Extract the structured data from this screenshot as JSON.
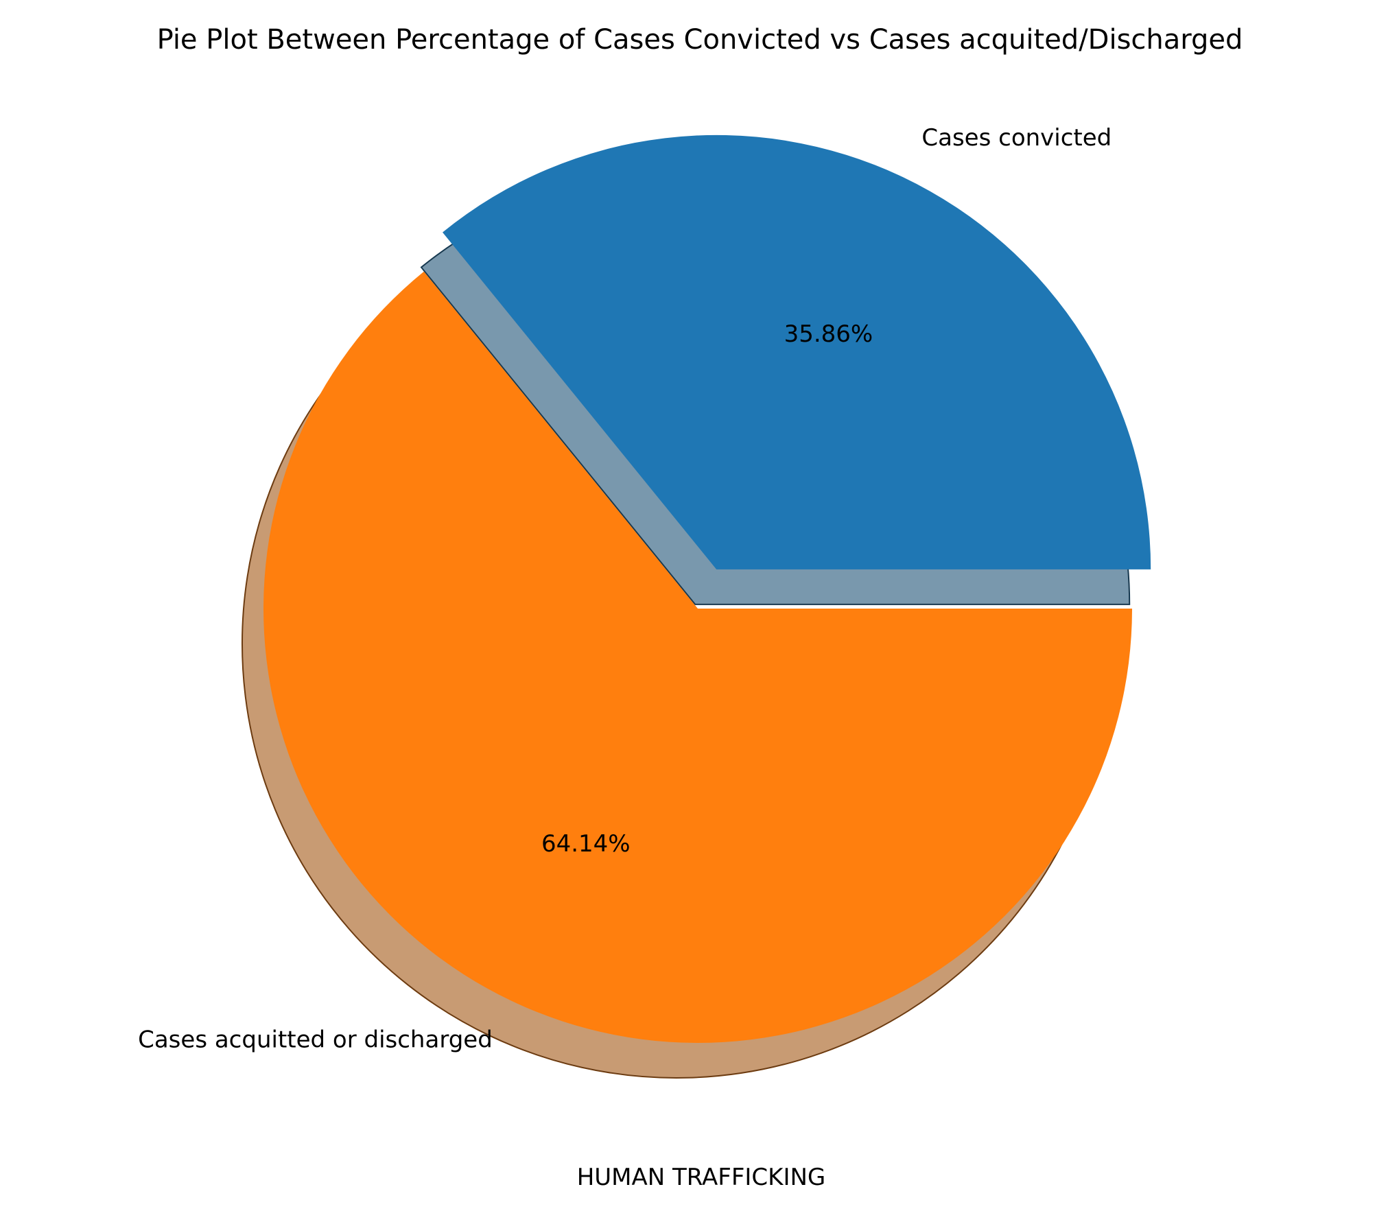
{
  "chart_data": {
    "type": "pie",
    "title": "Pie Plot Between Percentage of Cases Convicted vs Cases acquited/Discharged",
    "xlabel": "HUMAN TRAFFICKING",
    "ylabel": "",
    "shadow": true,
    "exploded_slice": "Cases convicted",
    "slices": [
      {
        "label": "Cases convicted",
        "value": 35.86,
        "pct_label": "35.86%",
        "color": "#1f77b4"
      },
      {
        "label": "Cases acquitted or discharged",
        "value": 64.14,
        "pct_label": "64.14%",
        "color": "#ff7f0e"
      }
    ]
  }
}
